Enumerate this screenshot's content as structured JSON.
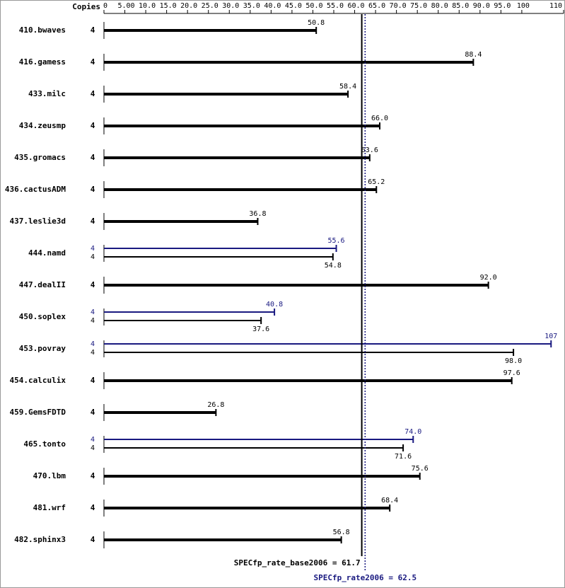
{
  "chart_data": {
    "type": "bar",
    "orientation": "horizontal",
    "copies_header": "Copies",
    "categories": [
      "410.bwaves",
      "416.gamess",
      "433.milc",
      "434.zeusmp",
      "435.gromacs",
      "436.cactusADM",
      "437.leslie3d",
      "444.namd",
      "447.dealII",
      "450.soplex",
      "453.povray",
      "454.calculix",
      "459.GemsFDTD",
      "465.tonto",
      "470.lbm",
      "481.wrf",
      "482.sphinx3"
    ],
    "series": [
      {
        "color": "#000000",
        "copies": [
          4,
          4,
          4,
          4,
          4,
          4,
          4,
          4,
          4,
          4,
          4,
          4,
          4,
          4,
          4,
          4,
          4
        ],
        "values": [
          50.8,
          88.4,
          58.4,
          66.0,
          63.6,
          65.2,
          36.8,
          54.8,
          92.0,
          37.6,
          98.0,
          97.6,
          26.8,
          71.6,
          75.6,
          68.4,
          56.8
        ],
        "value_labels": [
          "50.8",
          "88.4",
          "58.4",
          "66.0",
          "63.6",
          "65.2",
          "36.8",
          "54.8",
          "92.0",
          "37.6",
          "98.0",
          "97.6",
          "26.8",
          "71.6",
          "75.6",
          "68.4",
          "56.8"
        ]
      },
      {
        "color": "#191980",
        "copies": [
          null,
          null,
          null,
          null,
          null,
          null,
          null,
          4,
          null,
          4,
          4,
          null,
          null,
          4,
          null,
          null,
          null
        ],
        "values": [
          null,
          null,
          null,
          null,
          null,
          null,
          null,
          55.6,
          null,
          40.8,
          107,
          null,
          null,
          74.0,
          null,
          null,
          null
        ],
        "value_labels": [
          null,
          null,
          null,
          null,
          null,
          null,
          null,
          "55.6",
          null,
          "40.8",
          "107",
          null,
          null,
          "74.0",
          null,
          null,
          null
        ]
      }
    ],
    "xlim": [
      0,
      110
    ],
    "xticks": [
      0,
      {
        "value": 5,
        "label": "5.00"
      },
      {
        "value": 10,
        "label": "10.0"
      },
      {
        "value": 15,
        "label": "15.0"
      },
      {
        "value": 20,
        "label": "20.0"
      },
      {
        "value": 25,
        "label": "25.0"
      },
      {
        "value": 30,
        "label": "30.0"
      },
      {
        "value": 35,
        "label": "35.0"
      },
      {
        "value": 40,
        "label": "40.0"
      },
      {
        "value": 45,
        "label": "45.0"
      },
      {
        "value": 50,
        "label": "50.0"
      },
      {
        "value": 55,
        "label": "55.0"
      },
      {
        "value": 60,
        "label": "60.0"
      },
      {
        "value": 65,
        "label": "65.0"
      },
      {
        "value": 70,
        "label": "70.0"
      },
      {
        "value": 75,
        "label": "75.0"
      },
      {
        "value": 80,
        "label": "80.0"
      },
      {
        "value": 85,
        "label": "85.0"
      },
      {
        "value": 90,
        "label": "90.0"
      },
      {
        "value": 95,
        "label": "95.0"
      },
      100,
      110
    ],
    "reference_lines": [
      {
        "label": "SPECfp_rate_base2006 = 61.7",
        "value": 61.7,
        "color": "#000000",
        "dotted": false
      },
      {
        "label": "SPECfp_rate2006 = 62.5",
        "value": 62.5,
        "color": "#191980",
        "dotted": true
      }
    ]
  }
}
